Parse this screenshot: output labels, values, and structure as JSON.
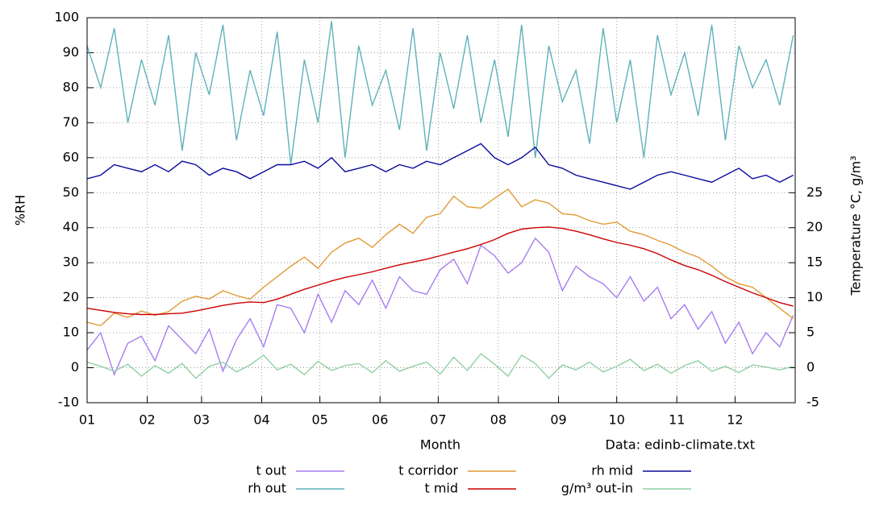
{
  "chart_data": {
    "type": "line",
    "x_label": "Month",
    "y_label": "%RH",
    "y2_label": "Temperature °C, g/m³",
    "annotation": "Data: edinb-climate.txt",
    "x": [
      1,
      8,
      15,
      22,
      29,
      36,
      43,
      50,
      57,
      64,
      71,
      78,
      85,
      92,
      99,
      106,
      113,
      120,
      127,
      134,
      141,
      148,
      155,
      162,
      169,
      176,
      183,
      190,
      197,
      204,
      211,
      218,
      225,
      232,
      239,
      246,
      253,
      260,
      267,
      274,
      281,
      288,
      295,
      302,
      309,
      316,
      323,
      330,
      337,
      344,
      351,
      358,
      365
    ],
    "xlim": [
      1,
      366
    ],
    "xticks": [
      {
        "value": 1,
        "label": "01"
      },
      {
        "value": 32,
        "label": "02"
      },
      {
        "value": 60,
        "label": "03"
      },
      {
        "value": 91,
        "label": "04"
      },
      {
        "value": 121,
        "label": "05"
      },
      {
        "value": 152,
        "label": "06"
      },
      {
        "value": 182,
        "label": "07"
      },
      {
        "value": 213,
        "label": "08"
      },
      {
        "value": 244,
        "label": "09"
      },
      {
        "value": 274,
        "label": "10"
      },
      {
        "value": 305,
        "label": "11"
      },
      {
        "value": 335,
        "label": "12"
      }
    ],
    "ylim": [
      -10,
      100
    ],
    "yticks": [
      -10,
      0,
      10,
      20,
      30,
      40,
      50,
      60,
      70,
      80,
      90,
      100
    ],
    "y2lim": [
      -5,
      50
    ],
    "y2ticks": [
      -5,
      0,
      5,
      10,
      15,
      20,
      25
    ],
    "grid": true,
    "series": [
      {
        "name": "t out",
        "color": "#a77cf2",
        "axis": "y2",
        "values": [
          2.5,
          5.0,
          -1.0,
          3.5,
          4.5,
          1.0,
          6.0,
          4.0,
          2.0,
          5.5,
          -0.5,
          4.0,
          7.0,
          3.0,
          9.0,
          8.5,
          5.0,
          10.5,
          6.5,
          11.0,
          9.0,
          12.5,
          8.5,
          13.0,
          11.0,
          10.5,
          14.0,
          15.5,
          12.0,
          17.5,
          16.0,
          13.5,
          15.0,
          18.5,
          16.5,
          11.0,
          14.5,
          13.0,
          12.0,
          10.0,
          13.0,
          9.5,
          11.5,
          7.0,
          9.0,
          5.5,
          8.0,
          3.5,
          6.5,
          2.0,
          5.0,
          3.0,
          7.5
        ]
      },
      {
        "name": "rh out",
        "color": "#5fb1b9",
        "values": [
          92,
          80,
          97,
          70,
          88,
          75,
          95,
          62,
          90,
          78,
          98,
          65,
          85,
          72,
          96,
          58,
          88,
          70,
          99,
          60,
          92,
          75,
          85,
          68,
          97,
          62,
          90,
          74,
          95,
          70,
          88,
          66,
          98,
          60,
          92,
          76,
          85,
          64,
          97,
          70,
          88,
          60,
          95,
          78,
          90,
          72,
          98,
          65,
          92,
          80,
          88,
          75,
          95
        ]
      },
      {
        "name": "t corridor",
        "color": "#e19a34",
        "axis": "y2",
        "values": [
          6.5,
          6.0,
          7.8,
          7.2,
          8.1,
          7.5,
          8.0,
          9.5,
          10.2,
          9.8,
          11.0,
          10.3,
          9.8,
          11.5,
          13.0,
          14.5,
          15.8,
          14.2,
          16.5,
          17.8,
          18.5,
          17.2,
          19.0,
          20.5,
          19.2,
          21.5,
          22.0,
          24.5,
          23.0,
          22.8,
          24.2,
          25.5,
          23.0,
          24.0,
          23.5,
          22.0,
          21.8,
          21.0,
          20.5,
          20.8,
          19.5,
          19.0,
          18.2,
          17.5,
          16.5,
          15.8,
          14.5,
          13.0,
          12.0,
          11.5,
          10.0,
          8.5,
          7.0
        ]
      },
      {
        "name": "t mid",
        "color": "#cc0000",
        "axis": "y2",
        "values": [
          8.5,
          8.2,
          7.9,
          7.7,
          7.6,
          7.6,
          7.7,
          7.8,
          8.1,
          8.5,
          8.9,
          9.2,
          9.4,
          9.3,
          9.8,
          10.5,
          11.2,
          11.8,
          12.4,
          12.9,
          13.3,
          13.7,
          14.2,
          14.7,
          15.1,
          15.5,
          16.0,
          16.5,
          17.0,
          17.6,
          18.3,
          19.2,
          19.8,
          20.0,
          20.1,
          19.9,
          19.5,
          19.0,
          18.4,
          17.9,
          17.5,
          17.0,
          16.3,
          15.4,
          14.6,
          14.0,
          13.2,
          12.3,
          11.5,
          10.7,
          10.0,
          9.3,
          8.8
        ]
      },
      {
        "name": "rh mid",
        "color": "#0a0a9c",
        "values": [
          54,
          55,
          58,
          57,
          56,
          58,
          56,
          59,
          58,
          55,
          57,
          56,
          54,
          56,
          58,
          58,
          59,
          57,
          60,
          56,
          57,
          58,
          56,
          58,
          57,
          59,
          58,
          60,
          62,
          64,
          60,
          58,
          60,
          63,
          58,
          57,
          55,
          54,
          53,
          52,
          51,
          53,
          55,
          56,
          55,
          54,
          53,
          55,
          57,
          54,
          55,
          53,
          55
        ]
      },
      {
        "name": "g/m³ out-in",
        "color": "#8fd0a2",
        "axis": "y2",
        "values": [
          0.8,
          0.2,
          -0.5,
          0.5,
          -1.2,
          0.3,
          -0.8,
          0.6,
          -1.5,
          0.2,
          0.8,
          -0.6,
          0.4,
          1.8,
          -0.3,
          0.5,
          -1.0,
          0.9,
          -0.4,
          0.3,
          0.6,
          -0.7,
          1.0,
          -0.5,
          0.2,
          0.8,
          -0.9,
          1.5,
          -0.4,
          2.0,
          0.5,
          -1.2,
          1.8,
          0.6,
          -1.5,
          0.4,
          -0.3,
          0.8,
          -0.6,
          0.2,
          1.2,
          -0.4,
          0.5,
          -0.8,
          0.3,
          1.0,
          -0.5,
          0.2,
          -0.7,
          0.4,
          0.1,
          -0.3,
          0.2
        ]
      }
    ]
  }
}
